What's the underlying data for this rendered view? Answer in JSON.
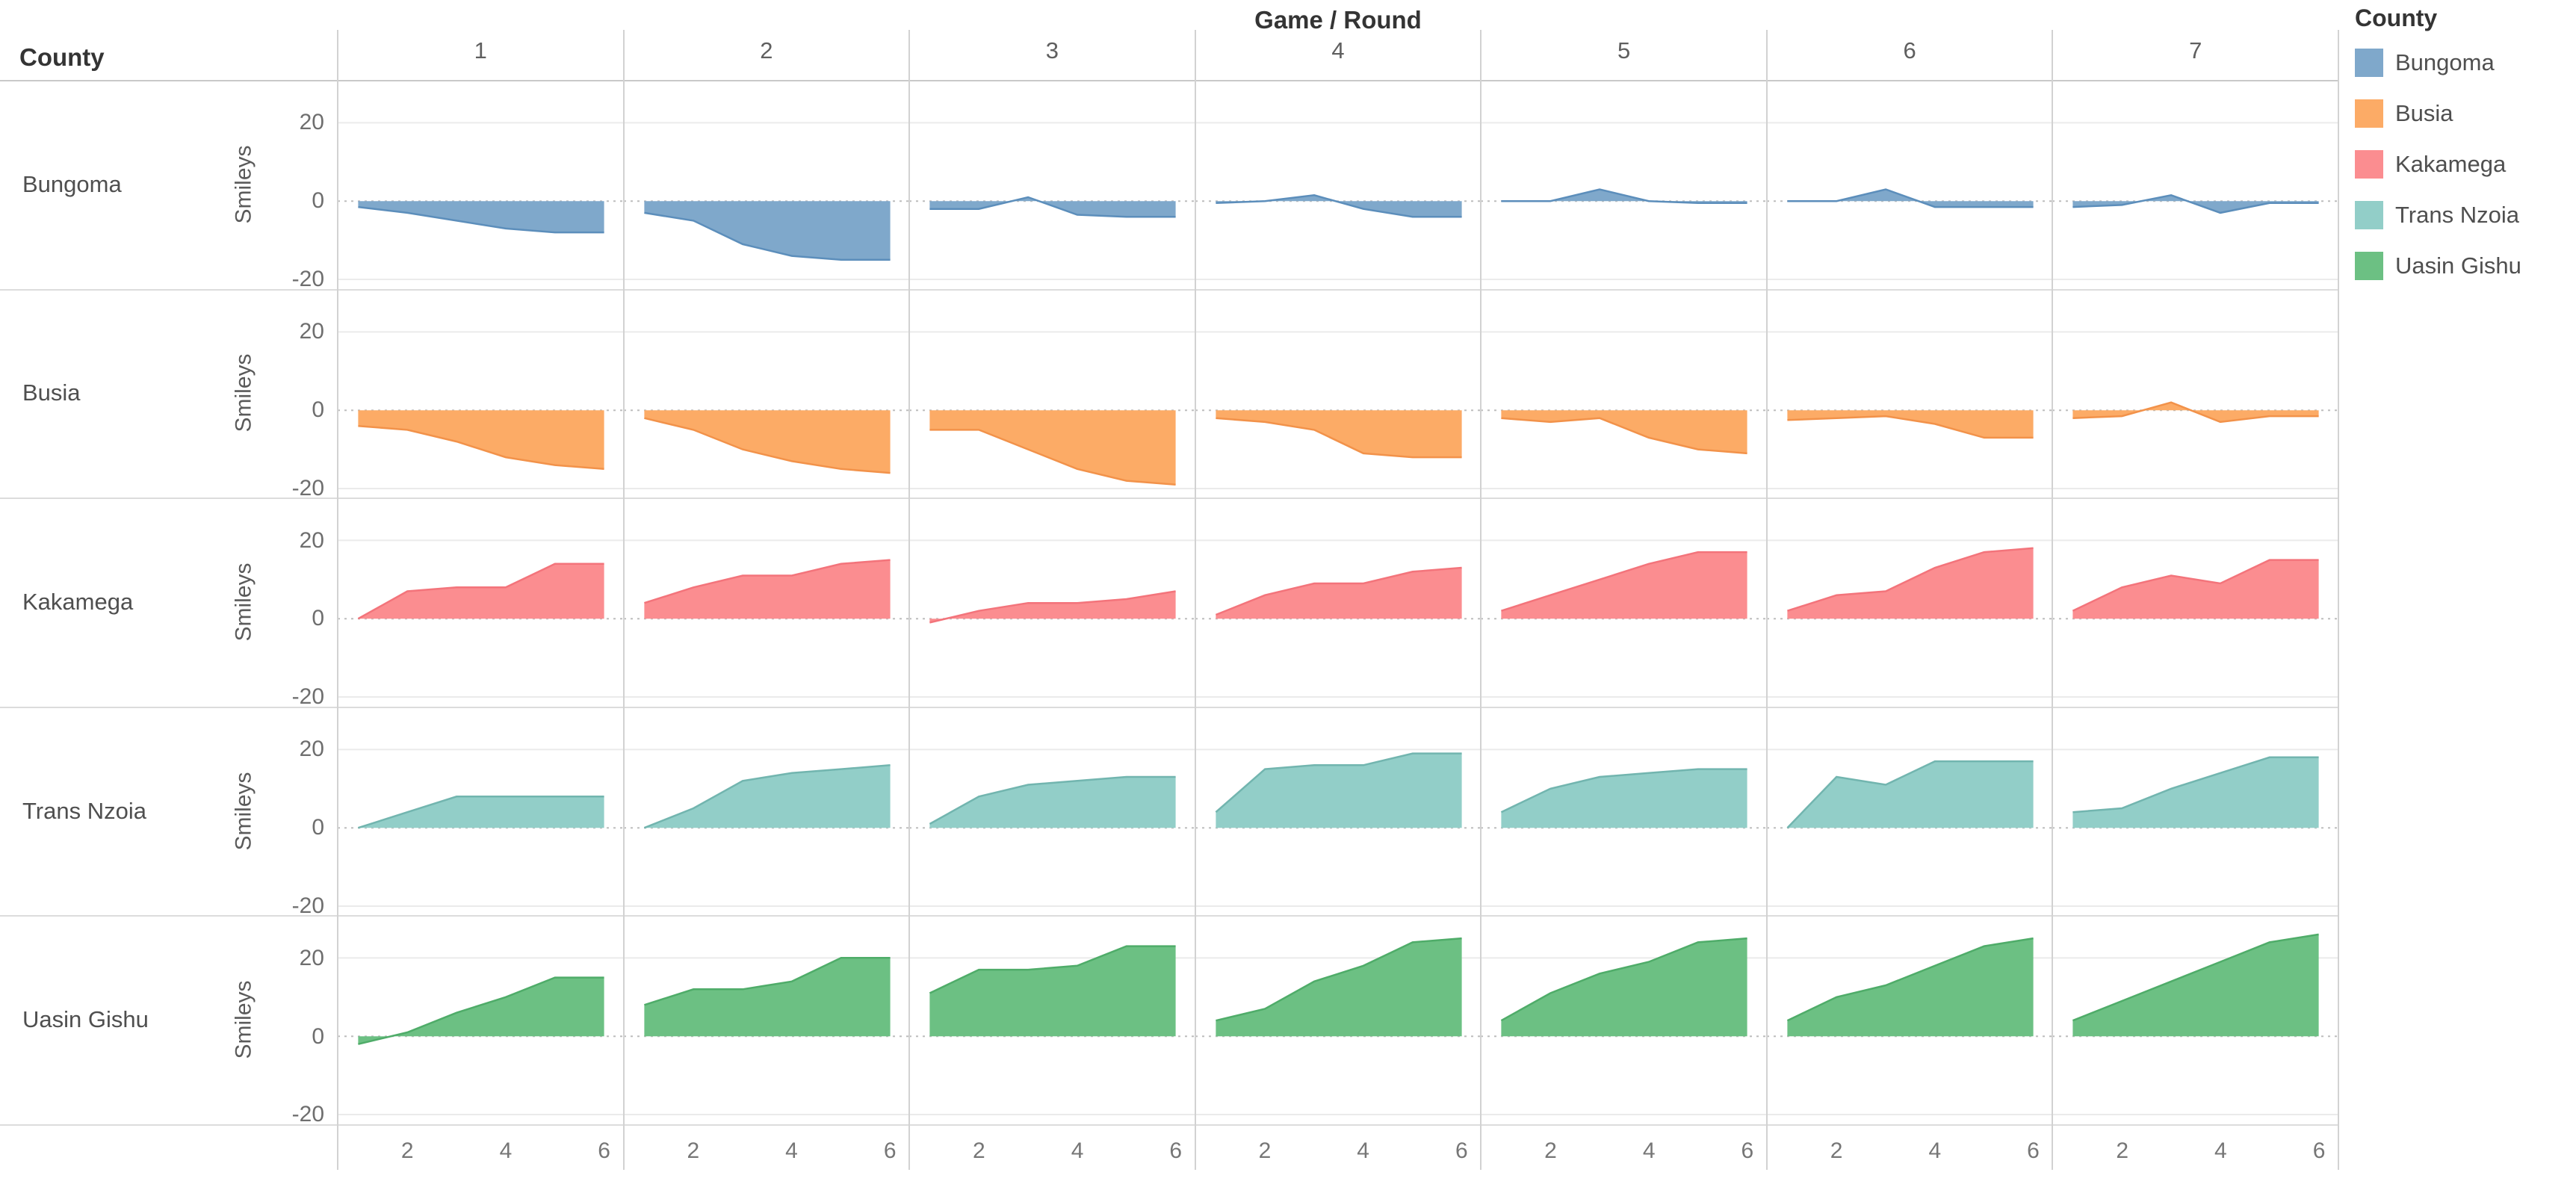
{
  "header": {
    "title": "Game / Round",
    "county_label": "County"
  },
  "legend": {
    "title": "County",
    "entries": [
      "Bungoma",
      "Busia",
      "Kakamega",
      "Trans Nzoia",
      "Uasin Gishu"
    ]
  },
  "chart_data": {
    "type": "area",
    "title": "Game / Round",
    "xlabel": "",
    "ylabel": "Smileys",
    "columns": [
      "1",
      "2",
      "3",
      "4",
      "5",
      "6",
      "7"
    ],
    "x": [
      1,
      2,
      3,
      4,
      5,
      6
    ],
    "x_tick_labels": [
      "2",
      "4",
      "6"
    ],
    "x_tick_values": [
      2,
      4,
      6
    ],
    "y_tick_labels": [
      "20",
      "0",
      "-20"
    ],
    "y_tick_values": [
      20,
      0,
      -20
    ],
    "ylim": [
      -22.4,
      31
    ],
    "grid": "light horizontal gridlines at +20/-20, dotted zero line",
    "legend_position": "top-right",
    "rows": [
      {
        "county": "Bungoma",
        "fill": "#7FA8CB",
        "stroke": "#5C8EBB",
        "series": [
          [
            -1.5,
            -3,
            -5,
            -7,
            -8,
            -8
          ],
          [
            -3,
            -5,
            -11,
            -14,
            -15,
            -15
          ],
          [
            -2,
            -2,
            1,
            -3.5,
            -4,
            -4
          ],
          [
            -0.5,
            0,
            1.5,
            -2,
            -4,
            -4
          ],
          [
            0,
            0,
            3,
            0,
            -0.5,
            -0.5
          ],
          [
            0,
            0,
            3,
            -1.5,
            -1.5,
            -1.5
          ],
          [
            -1.5,
            -1,
            1.5,
            -3,
            -0.5,
            -0.5
          ]
        ]
      },
      {
        "county": "Busia",
        "fill": "#FCAB66",
        "stroke": "#F2924A",
        "series": [
          [
            -4,
            -5,
            -8,
            -12,
            -14,
            -15
          ],
          [
            -2,
            -5,
            -10,
            -13,
            -15,
            -16
          ],
          [
            -5,
            -5,
            -10,
            -15,
            -18,
            -19
          ],
          [
            -2,
            -3,
            -5,
            -11,
            -12,
            -12
          ],
          [
            -2,
            -3,
            -2,
            -7,
            -10,
            -11
          ],
          [
            -2.5,
            -2,
            -1.5,
            -3.5,
            -7,
            -7
          ],
          [
            -2,
            -1.5,
            2,
            -3,
            -1.5,
            -1.5
          ]
        ]
      },
      {
        "county": "Kakamega",
        "fill": "#FB8D90",
        "stroke": "#F3747B",
        "series": [
          [
            0,
            7,
            8,
            8,
            14,
            14
          ],
          [
            4,
            8,
            11,
            11,
            14,
            15
          ],
          [
            -1,
            2,
            4,
            4,
            5,
            7
          ],
          [
            1,
            6,
            9,
            9,
            12,
            13
          ],
          [
            2,
            6,
            10,
            14,
            17,
            17
          ],
          [
            2,
            6,
            7,
            13,
            17,
            18
          ],
          [
            2,
            8,
            11,
            9,
            15,
            15
          ]
        ]
      },
      {
        "county": "Trans Nzoia",
        "fill": "#92CEC8",
        "stroke": "#72B5AF",
        "series": [
          [
            0,
            4,
            8,
            8,
            8,
            8
          ],
          [
            0,
            5,
            12,
            14,
            15,
            16
          ],
          [
            1,
            8,
            11,
            12,
            13,
            13
          ],
          [
            4,
            15,
            16,
            16,
            19,
            19
          ],
          [
            4,
            10,
            13,
            14,
            15,
            15
          ],
          [
            0,
            13,
            11,
            17,
            17,
            17
          ],
          [
            4,
            5,
            10,
            14,
            18,
            18
          ]
        ]
      },
      {
        "county": "Uasin Gishu",
        "fill": "#6CC083",
        "stroke": "#4FAC69",
        "series": [
          [
            -2,
            1,
            6,
            10,
            15,
            15
          ],
          [
            8,
            12,
            12,
            14,
            20,
            20
          ],
          [
            11,
            17,
            17,
            18,
            23,
            23
          ],
          [
            4,
            7,
            14,
            18,
            24,
            25
          ],
          [
            4,
            11,
            16,
            19,
            24,
            25
          ],
          [
            4,
            10,
            13,
            18,
            23,
            25
          ],
          [
            4,
            9,
            14,
            19,
            24,
            26
          ]
        ]
      }
    ]
  }
}
